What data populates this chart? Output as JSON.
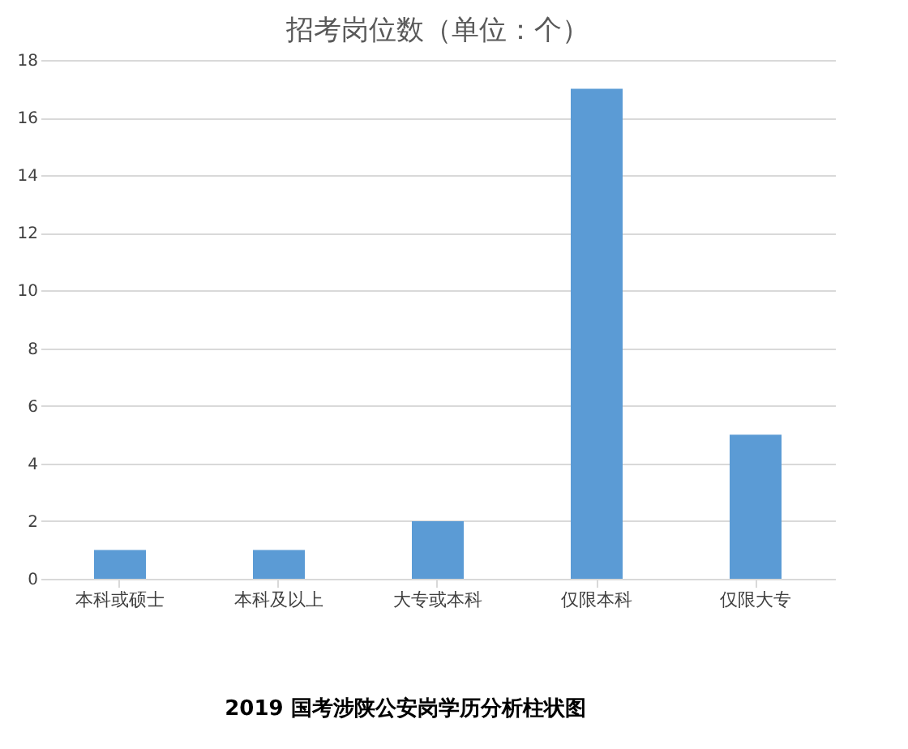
{
  "chart_data": {
    "type": "bar",
    "title": "招考岗位数（单位：个）",
    "categories": [
      "本科或硕士",
      "本科及以上",
      "大专或本科",
      "仅限本科",
      "仅限大专"
    ],
    "values": [
      1,
      1,
      2,
      17,
      5
    ],
    "color": "#5b9bd5",
    "ylim": [
      0,
      18
    ],
    "yticks": [
      0,
      2,
      4,
      6,
      8,
      10,
      12,
      14,
      16,
      18
    ],
    "grid": "y",
    "annotations": [
      "2019 国考涉陕公安岗学历分析柱状图"
    ]
  }
}
